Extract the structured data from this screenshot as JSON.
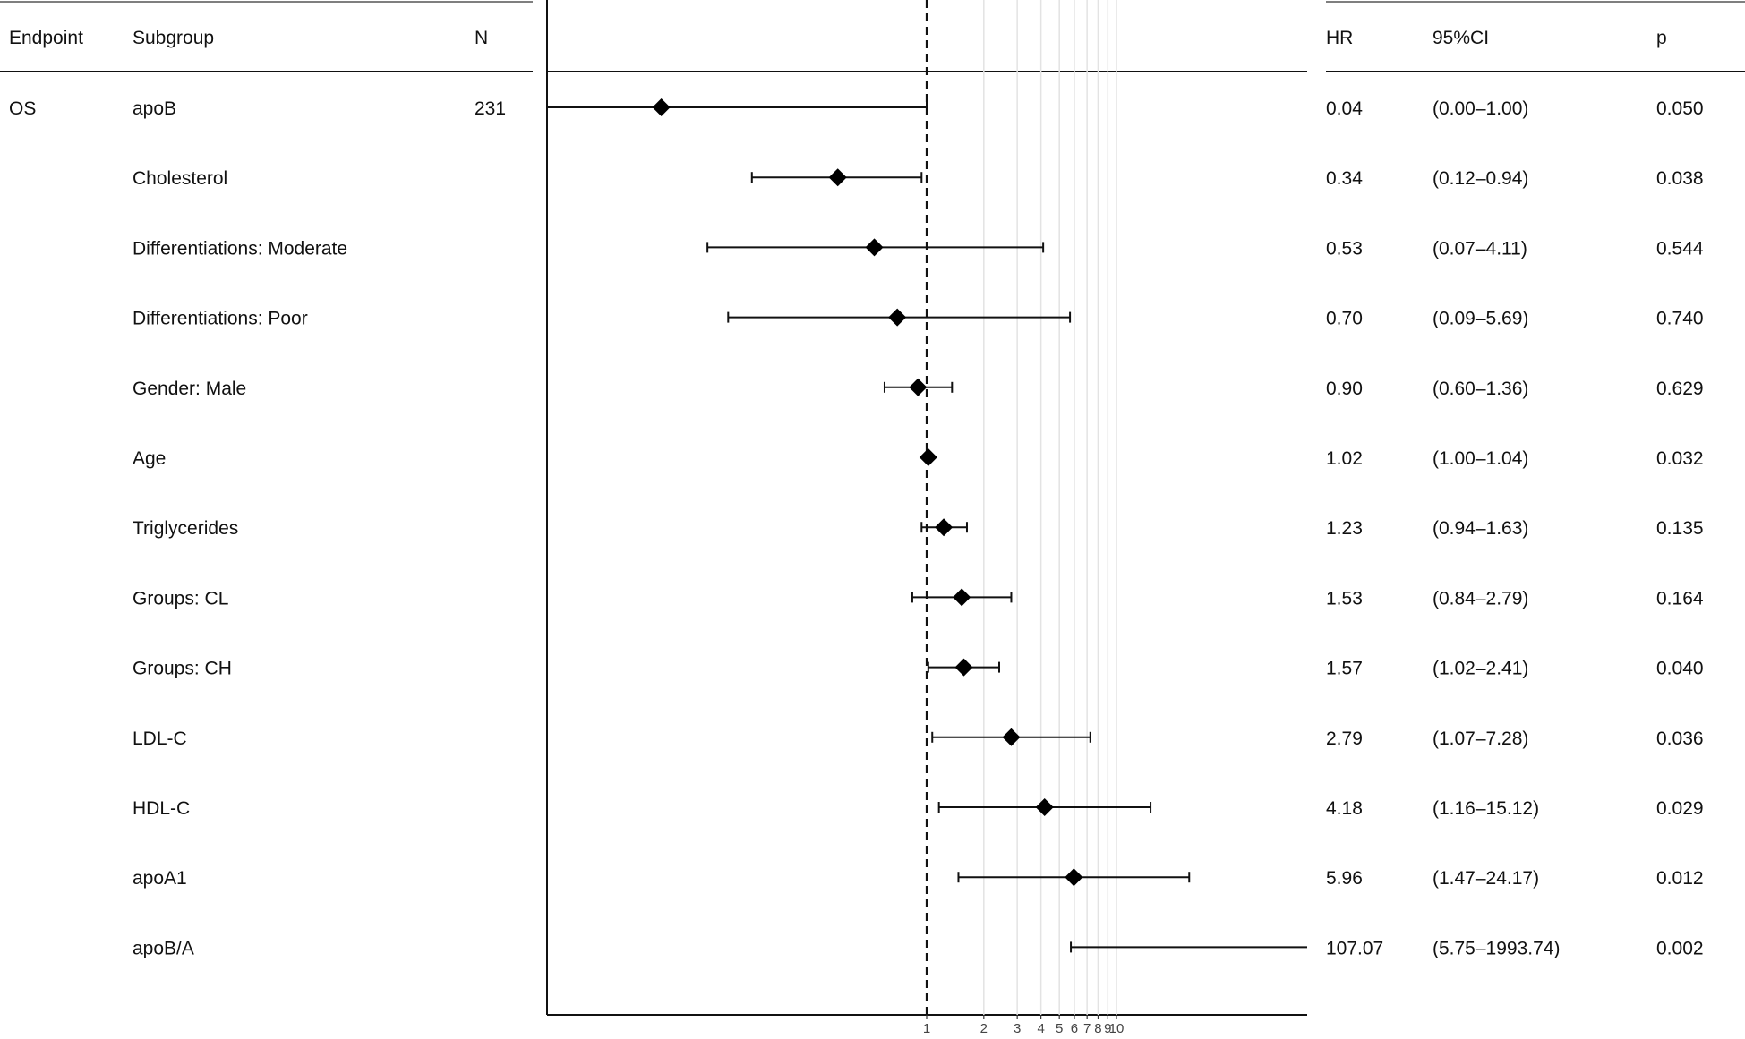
{
  "headers": {
    "endpoint": "Endpoint",
    "subgroup": "Subgroup",
    "n": "N",
    "hr": "HR",
    "ci": "95%CI",
    "p": "p"
  },
  "chart_data": {
    "type": "forest",
    "endpoint": "OS",
    "n": "231",
    "x_scale": "log",
    "x_ticks": [
      1,
      2,
      3,
      4,
      5,
      6,
      7,
      8,
      9,
      10
    ],
    "x_tick_labels": [
      "1",
      "2",
      "3",
      "4",
      "5",
      "6",
      "7",
      "8",
      "9",
      "10"
    ],
    "reference_line": 1,
    "rows": [
      {
        "subgroup": "apoB",
        "hr": 0.04,
        "lo": 0.0,
        "hi": 1.0,
        "hr_text": "0.04",
        "ci_text": "(0.00–1.00)",
        "p_text": "0.050"
      },
      {
        "subgroup": "Cholesterol",
        "hr": 0.34,
        "lo": 0.12,
        "hi": 0.94,
        "hr_text": "0.34",
        "ci_text": "(0.12–0.94)",
        "p_text": "0.038"
      },
      {
        "subgroup": "Differentiations: Moderate",
        "hr": 0.53,
        "lo": 0.07,
        "hi": 4.11,
        "hr_text": "0.53",
        "ci_text": "(0.07–4.11)",
        "p_text": "0.544"
      },
      {
        "subgroup": "Differentiations: Poor",
        "hr": 0.7,
        "lo": 0.09,
        "hi": 5.69,
        "hr_text": "0.70",
        "ci_text": "(0.09–5.69)",
        "p_text": "0.740"
      },
      {
        "subgroup": "Gender: Male",
        "hr": 0.9,
        "lo": 0.6,
        "hi": 1.36,
        "hr_text": "0.90",
        "ci_text": "(0.60–1.36)",
        "p_text": "0.629"
      },
      {
        "subgroup": "Age",
        "hr": 1.02,
        "lo": 1.0,
        "hi": 1.04,
        "hr_text": "1.02",
        "ci_text": "(1.00–1.04)",
        "p_text": "0.032"
      },
      {
        "subgroup": "Triglycerides",
        "hr": 1.23,
        "lo": 0.94,
        "hi": 1.63,
        "hr_text": "1.23",
        "ci_text": "(0.94–1.63)",
        "p_text": "0.135"
      },
      {
        "subgroup": "Groups: CL",
        "hr": 1.53,
        "lo": 0.84,
        "hi": 2.79,
        "hr_text": "1.53",
        "ci_text": "(0.84–2.79)",
        "p_text": "0.164"
      },
      {
        "subgroup": "Groups: CH",
        "hr": 1.57,
        "lo": 1.02,
        "hi": 2.41,
        "hr_text": "1.57",
        "ci_text": "(1.02–2.41)",
        "p_text": "0.040"
      },
      {
        "subgroup": "LDL-C",
        "hr": 2.79,
        "lo": 1.07,
        "hi": 7.28,
        "hr_text": "2.79",
        "ci_text": "(1.07–7.28)",
        "p_text": "0.036"
      },
      {
        "subgroup": "HDL-C",
        "hr": 4.18,
        "lo": 1.16,
        "hi": 15.12,
        "hr_text": "4.18",
        "ci_text": "(1.16–15.12)",
        "p_text": "0.029"
      },
      {
        "subgroup": "apoA1",
        "hr": 5.96,
        "lo": 1.47,
        "hi": 24.17,
        "hr_text": "5.96",
        "ci_text": "(1.47–24.17)",
        "p_text": "0.012"
      },
      {
        "subgroup": "apoB/A",
        "hr": 107.07,
        "lo": 5.75,
        "hi": 1993.74,
        "hr_text": "107.07",
        "ci_text": "(5.75–1993.74)",
        "p_text": "0.002"
      }
    ]
  }
}
